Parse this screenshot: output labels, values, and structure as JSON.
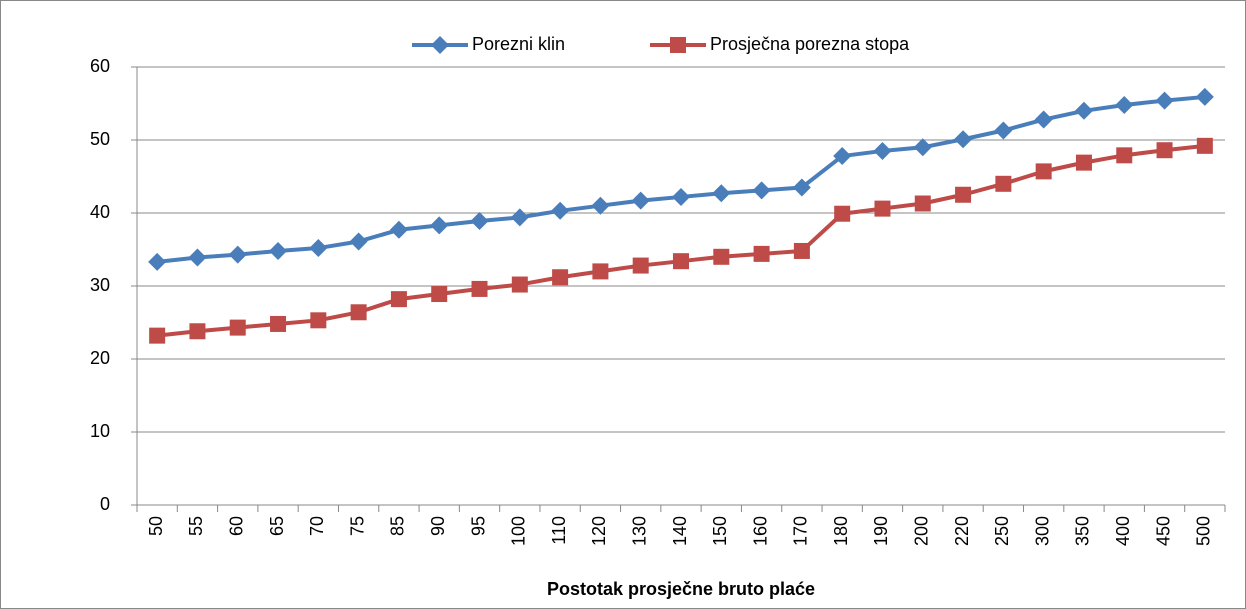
{
  "chart_data": {
    "type": "line",
    "x_label": "Postotak prosječne bruto plaće",
    "categories": [
      "50",
      "55",
      "60",
      "65",
      "70",
      "75",
      "85",
      "90",
      "95",
      "100",
      "110",
      "120",
      "130",
      "140",
      "150",
      "160",
      "170",
      "180",
      "190",
      "200",
      "220",
      "250",
      "300",
      "350",
      "400",
      "450",
      "500"
    ],
    "series": [
      {
        "name": "Porezni klin",
        "color": "#4a7ebb",
        "marker": "diamond",
        "values": [
          33.3,
          33.9,
          34.3,
          34.8,
          35.2,
          36.1,
          37.7,
          38.3,
          38.9,
          39.4,
          40.3,
          41.0,
          41.7,
          42.2,
          42.7,
          43.1,
          43.5,
          47.8,
          48.5,
          49.0,
          50.1,
          51.3,
          52.8,
          54.0,
          54.8,
          55.4,
          55.9
        ]
      },
      {
        "name": "Prosječna porezna stopa",
        "color": "#be4b48",
        "marker": "square",
        "values": [
          23.2,
          23.8,
          24.3,
          24.8,
          25.3,
          26.4,
          28.2,
          28.9,
          29.6,
          30.2,
          31.2,
          32.0,
          32.8,
          33.4,
          34.0,
          34.4,
          34.8,
          39.9,
          40.6,
          41.3,
          42.5,
          44.0,
          45.7,
          46.9,
          47.9,
          48.6,
          49.2
        ]
      }
    ],
    "ylim": [
      0,
      60
    ],
    "yticks": [
      0,
      10,
      20,
      30,
      40,
      50,
      60
    ],
    "grid": true,
    "legend": "top"
  }
}
